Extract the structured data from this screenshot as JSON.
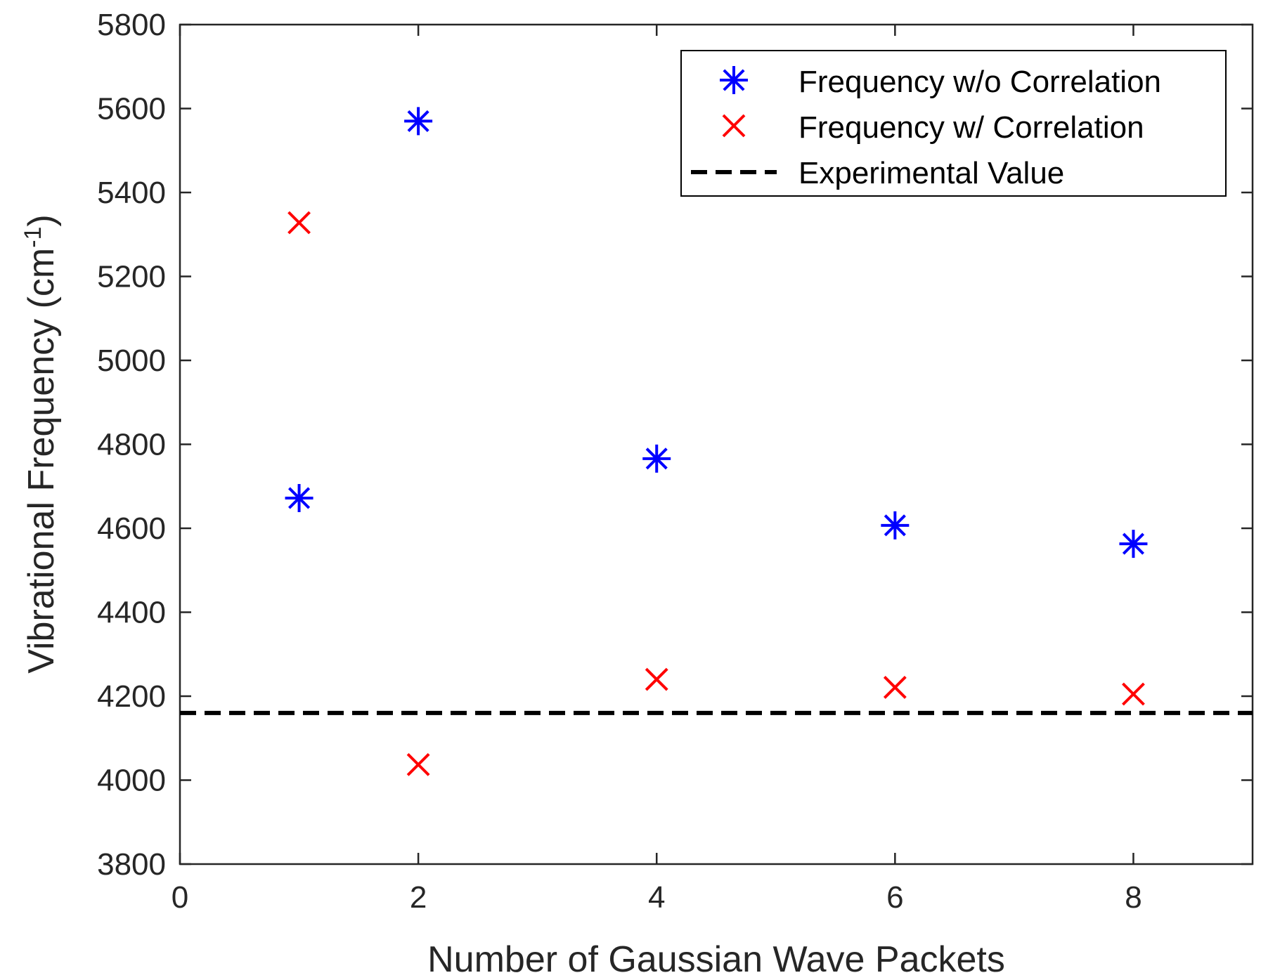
{
  "chart_data": {
    "type": "scatter",
    "title": "",
    "xlabel": "Number of Gaussian Wave Packets",
    "ylabel": "Vibrational Frequency (cm",
    "ylabel_superscript": "-1",
    "ylabel_close": ")",
    "xlim": [
      0,
      9
    ],
    "ylim": [
      3800,
      5800
    ],
    "xticks": [
      0,
      2,
      4,
      6,
      8
    ],
    "yticks": [
      3800,
      4000,
      4200,
      4400,
      4600,
      4800,
      5000,
      5200,
      5400,
      5600,
      5800
    ],
    "grid": false,
    "legend_position": "top-right",
    "series": [
      {
        "name": "Frequency w/o Correlation",
        "marker": "asterisk",
        "color": "#0000ff",
        "points": [
          {
            "x": 1,
            "y": 4672
          },
          {
            "x": 2,
            "y": 5570
          },
          {
            "x": 4,
            "y": 4766
          },
          {
            "x": 6,
            "y": 4607
          },
          {
            "x": 8,
            "y": 4563
          }
        ]
      },
      {
        "name": "Frequency w/ Correlation",
        "marker": "x",
        "color": "#ff0000",
        "points": [
          {
            "x": 1,
            "y": 5328
          },
          {
            "x": 2,
            "y": 4037
          },
          {
            "x": 4,
            "y": 4240
          },
          {
            "x": 6,
            "y": 4221
          },
          {
            "x": 8,
            "y": 4205
          }
        ]
      }
    ],
    "reference_lines": [
      {
        "name": "Experimental Value",
        "y": 4160,
        "style": "dashed",
        "color": "#000000"
      }
    ]
  }
}
